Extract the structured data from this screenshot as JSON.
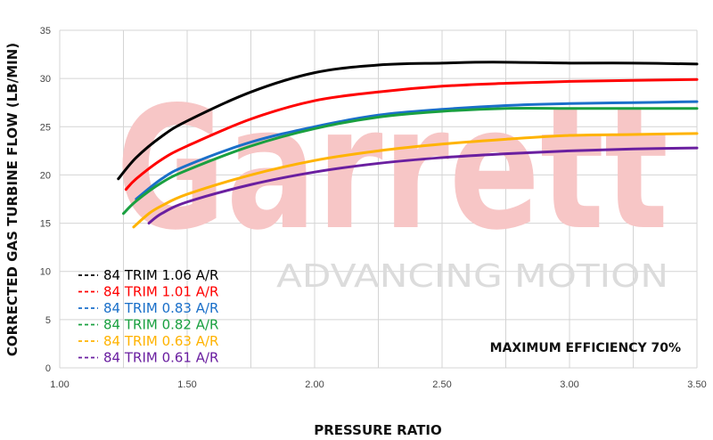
{
  "chart_data": {
    "type": "line",
    "title": "",
    "xlabel": "PRESSURE RATIO",
    "ylabel": "CORRECTED GAS TURBINE FLOW (LB/MIN)",
    "xlim": [
      1.0,
      3.5
    ],
    "ylim": [
      0,
      35
    ],
    "x_ticks": [
      "1.00",
      "1.50",
      "2.00",
      "2.50",
      "3.00",
      "3.50"
    ],
    "x_tick_values": [
      1.0,
      1.5,
      2.0,
      2.5,
      3.0,
      3.5
    ],
    "y_ticks": [
      "0",
      "5",
      "10",
      "15",
      "20",
      "25",
      "30",
      "35"
    ],
    "y_tick_values": [
      0,
      5,
      10,
      15,
      20,
      25,
      30,
      35
    ],
    "grid": true,
    "legend_placement": "bottom-left",
    "annotation": "MAXIMUM EFFICIENCY 70%",
    "watermark": {
      "brand": "Garrett",
      "tagline": "ADVANCING MOTION",
      "brand_color": "#f7c6c6"
    },
    "series": [
      {
        "name": "84 TRIM 1.06 A/R",
        "color": "#000000",
        "x": [
          1.23,
          1.3,
          1.4,
          1.5,
          1.75,
          2.0,
          2.25,
          2.5,
          2.7,
          3.0,
          3.25,
          3.5
        ],
        "y": [
          19.6,
          21.8,
          24.0,
          25.6,
          28.6,
          30.6,
          31.4,
          31.6,
          31.7,
          31.6,
          31.6,
          31.5
        ]
      },
      {
        "name": "84 TRIM 1.01 A/R",
        "color": "#ff0000",
        "x": [
          1.26,
          1.3,
          1.4,
          1.5,
          1.75,
          2.0,
          2.25,
          2.5,
          2.75,
          3.0,
          3.25,
          3.5
        ],
        "y": [
          18.5,
          19.6,
          21.6,
          23.0,
          25.8,
          27.7,
          28.6,
          29.2,
          29.5,
          29.7,
          29.8,
          29.9
        ]
      },
      {
        "name": "84 TRIM 0.83 A/R",
        "color": "#1a6fc9",
        "x": [
          1.3,
          1.4,
          1.5,
          1.75,
          2.0,
          2.25,
          2.5,
          2.75,
          3.0,
          3.25,
          3.5
        ],
        "y": [
          17.5,
          19.6,
          21.0,
          23.4,
          25.0,
          26.2,
          26.8,
          27.2,
          27.4,
          27.5,
          27.6
        ]
      },
      {
        "name": "84 TRIM 0.82 A/R",
        "color": "#1aa040",
        "x": [
          1.25,
          1.3,
          1.4,
          1.5,
          1.75,
          2.0,
          2.25,
          2.5,
          2.75,
          3.0,
          3.25,
          3.5
        ],
        "y": [
          16.0,
          17.3,
          19.2,
          20.5,
          23.0,
          24.8,
          26.0,
          26.6,
          26.9,
          26.9,
          26.9,
          26.9
        ]
      },
      {
        "name": "84 TRIM 0.63 A/R",
        "color": "#ffb300",
        "x": [
          1.29,
          1.35,
          1.4,
          1.5,
          1.75,
          2.0,
          2.25,
          2.5,
          2.75,
          3.0,
          3.25,
          3.5
        ],
        "y": [
          14.6,
          16.0,
          16.8,
          18.0,
          20.0,
          21.5,
          22.5,
          23.2,
          23.7,
          24.1,
          24.2,
          24.3
        ]
      },
      {
        "name": "84 TRIM 0.61 A/R",
        "color": "#6a1fa0",
        "x": [
          1.35,
          1.4,
          1.5,
          1.75,
          2.0,
          2.25,
          2.5,
          2.75,
          3.0,
          3.25,
          3.5
        ],
        "y": [
          15.0,
          16.0,
          17.2,
          19.0,
          20.3,
          21.2,
          21.8,
          22.2,
          22.5,
          22.7,
          22.8
        ]
      }
    ]
  }
}
